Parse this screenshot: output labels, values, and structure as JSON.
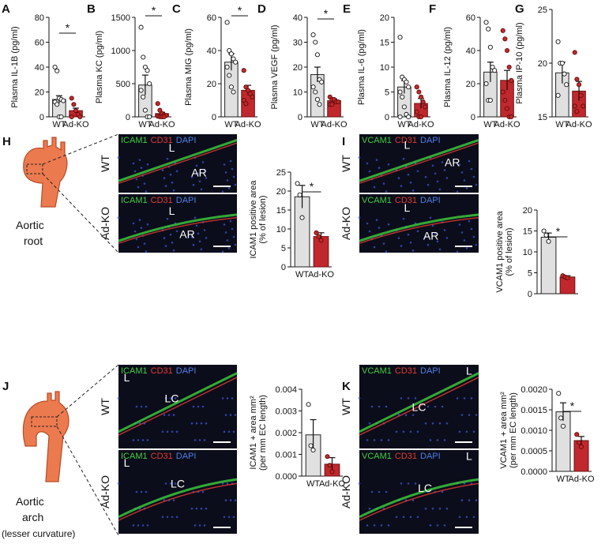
{
  "chart_data": [
    {
      "type": "bar",
      "panel": "A",
      "ylabel": [
        "Plasma IL-1B (pg/ml)"
      ],
      "categories": [
        "WT",
        "Ad-KO"
      ],
      "values": [
        14,
        5
      ],
      "errors": [
        3,
        2
      ],
      "points": [
        [
          40,
          37,
          15,
          14,
          13,
          12,
          10,
          0,
          0
        ],
        [
          15,
          10,
          5,
          2,
          0,
          0
        ]
      ],
      "ylim": [
        0,
        80
      ],
      "yticks": [
        0,
        20,
        40,
        60,
        80
      ],
      "annotation": "*",
      "colors": [
        "#e0e0e0",
        "#c0282d"
      ]
    },
    {
      "type": "bar",
      "panel": "B",
      "ylabel": [
        "Plasma KC (pg/ml)"
      ],
      "categories": [
        "WT",
        "Ad-KO"
      ],
      "values": [
        480,
        50
      ],
      "errors": [
        150,
        20
      ],
      "points": [
        [
          1350,
          900,
          750,
          700,
          500,
          400,
          300,
          100,
          0,
          0
        ],
        [
          200,
          100,
          50,
          30,
          20,
          10,
          0,
          0,
          0
        ]
      ],
      "ylim": [
        0,
        1500
      ],
      "yticks": [
        0,
        500,
        1000,
        1500
      ],
      "annotation": "*",
      "colors": [
        "#e0e0e0",
        "#c0282d"
      ]
    },
    {
      "type": "bar",
      "panel": "C",
      "ylabel": [
        "Plasma MIG (pg/ml)"
      ],
      "categories": [
        "WT",
        "Ad-KO"
      ],
      "values": [
        33,
        16
      ],
      "errors": [
        5,
        3
      ],
      "points": [
        [
          57,
          40,
          38,
          35,
          33,
          30,
          25,
          18,
          15
        ],
        [
          28,
          18,
          16,
          14,
          12,
          10,
          8
        ]
      ],
      "ylim": [
        0,
        60
      ],
      "yticks": [
        0,
        20,
        40,
        60
      ],
      "annotation": "*",
      "colors": [
        "#e0e0e0",
        "#c0282d"
      ]
    },
    {
      "type": "bar",
      "panel": "D",
      "ylabel": [
        "Plasma VEGF (pg/ml)"
      ],
      "categories": [
        "WT",
        "Ad-KO"
      ],
      "values": [
        17,
        6.5
      ],
      "errors": [
        3,
        0.7
      ],
      "points": [
        [
          33,
          30,
          25,
          15,
          14,
          12,
          10,
          7,
          5
        ],
        [
          8,
          7,
          7,
          6,
          6,
          5,
          5
        ]
      ],
      "ylim": [
        0,
        40
      ],
      "yticks": [
        0,
        10,
        20,
        30,
        40
      ],
      "annotation": "*",
      "colors": [
        "#e0e0e0",
        "#c0282d"
      ]
    },
    {
      "type": "bar",
      "panel": "E",
      "ylabel": [
        "Plasma IL-6 (pg/ml)"
      ],
      "categories": [
        "WT",
        "Ad-KO"
      ],
      "values": [
        6,
        2.7
      ],
      "errors": [
        1.3,
        1
      ],
      "points": [
        [
          16,
          8,
          7.5,
          7,
          6,
          5,
          4,
          2,
          0.5,
          0,
          0
        ],
        [
          6,
          5,
          4,
          3,
          2,
          1,
          0,
          0
        ]
      ],
      "ylim": [
        0,
        20
      ],
      "yticks": [
        0,
        5,
        10,
        15,
        20
      ],
      "colors": [
        "#e0e0e0",
        "#c0282d"
      ]
    },
    {
      "type": "bar",
      "panel": "F",
      "ylabel": [
        "Plasma IL-12 (pg/ml)"
      ],
      "categories": [
        "WT",
        "Ad-KO"
      ],
      "values": [
        27,
        22
      ],
      "errors": [
        6,
        6
      ],
      "points": [
        [
          57,
          53,
          42,
          30,
          28,
          20,
          10,
          10
        ],
        [
          52,
          47,
          40,
          30,
          22,
          15,
          10,
          5,
          0,
          0
        ]
      ],
      "ylim": [
        0,
        60
      ],
      "yticks": [
        0,
        20,
        40,
        60
      ],
      "colors": [
        "#e0e0e0",
        "#c0282d"
      ]
    },
    {
      "type": "bar",
      "panel": "G",
      "ylabel": [
        "Plasma IP-10 (pg/ml)"
      ],
      "categories": [
        "WT",
        "Ad-KO"
      ],
      "values": [
        19.1,
        17.4
      ],
      "errors": [
        1,
        0.9
      ],
      "points": [
        [
          22,
          20,
          20,
          19,
          18,
          17
        ],
        [
          21,
          18.5,
          18,
          17,
          16,
          16,
          15.5
        ]
      ],
      "ylim": [
        15,
        25
      ],
      "yticks": [
        15,
        20,
        25
      ],
      "colors": [
        "#e0e0e0",
        "#c0282d"
      ]
    },
    {
      "type": "bar",
      "ylabel": [
        "ICAM1 positive area",
        "(% of lesion)"
      ],
      "categories": [
        "WT",
        "Ad-KO"
      ],
      "values": [
        18.5,
        8
      ],
      "errors": [
        3,
        1
      ],
      "points": [
        [
          22,
          19,
          13
        ],
        [
          9,
          8,
          7
        ]
      ],
      "ylim": [
        0,
        25
      ],
      "yticks": [
        0,
        5,
        10,
        15,
        20,
        25
      ],
      "annotation": "*",
      "colors": [
        "#e0e0e0",
        "#c0282d"
      ]
    },
    {
      "type": "bar",
      "ylabel": [
        "VCAM1 positive area",
        "(% of lesion)"
      ],
      "values": [
        13.5,
        4
      ],
      "errors": [
        1,
        0.3
      ],
      "points": [
        [
          15,
          14,
          12.5
        ],
        [
          4.3,
          4,
          3.8
        ]
      ],
      "ylim": [
        0,
        20
      ],
      "yticks": [
        0,
        5,
        10,
        15,
        20
      ],
      "annotation": "*",
      "colors": [
        "#e0e0e0",
        "#c0282d"
      ]
    },
    {
      "type": "bar",
      "ylabel": [
        "ICAM1 + area mm²",
        "(per mm EC length)"
      ],
      "categories": [
        "WT",
        "Ad-KO"
      ],
      "values": [
        0.0019,
        0.00055
      ],
      "errors": [
        0.0007,
        0.0003
      ],
      "points": [
        [
          0.0033,
          0.0014,
          0.0012
        ],
        [
          0.0009,
          0.0005,
          0.0002
        ]
      ],
      "ylim": [
        0,
        0.004
      ],
      "yticks": [
        {
          "value": 0,
          "label": "0.000"
        },
        {
          "value": 0.001,
          "label": "0.001"
        },
        {
          "value": 0.002,
          "label": "0.002"
        },
        {
          "value": 0.003,
          "label": "0.003"
        },
        {
          "value": 0.004,
          "label": "0.004"
        }
      ],
      "colors": [
        "#e0e0e0",
        "#c0282d"
      ]
    },
    {
      "type": "bar",
      "ylabel": [
        "VCAM1 + area mm²",
        "(per mm EC length)"
      ],
      "categories": [
        "WT",
        "Ad-KO"
      ],
      "values": [
        0.00145,
        0.00075
      ],
      "errors": [
        0.00022,
        0.0001
      ],
      "points": [
        [
          0.0019,
          0.0013,
          0.0011
        ],
        [
          0.0009,
          0.0007,
          0.0006
        ]
      ],
      "ylim": [
        0,
        0.002
      ],
      "yticks": [
        {
          "value": 0,
          "label": "0.0000"
        },
        {
          "value": 0.0005,
          "label": "0.0005"
        },
        {
          "value": 0.001,
          "label": "0.0010"
        },
        {
          "value": 0.0015,
          "label": "0.0015"
        },
        {
          "value": 0.002,
          "label": "0.0020"
        }
      ],
      "annotation": "*",
      "colors": [
        "#e0e0e0",
        "#c0282d"
      ]
    }
  ],
  "micrographs": [
    {
      "panel": "H",
      "stain": [
        {
          "text": "ICAM1",
          "color": "#3fd13f"
        },
        {
          "text": "CD31",
          "color": "#e53935"
        },
        {
          "text": "DAPI",
          "color": "#4f7fe8"
        }
      ],
      "rows": [
        {
          "genotype": "WT",
          "labels": [
            "L",
            "AR"
          ]
        },
        {
          "genotype": "Ad-KO",
          "labels": [
            "L",
            "AR"
          ]
        }
      ]
    },
    {
      "panel": "I",
      "stain": [
        {
          "text": "VCAM1",
          "color": "#3fd13f"
        },
        {
          "text": "CD31",
          "color": "#e53935"
        },
        {
          "text": "DAPI",
          "color": "#4f7fe8"
        }
      ],
      "rows": [
        {
          "genotype": "WT",
          "labels": [
            "L",
            "AR"
          ]
        },
        {
          "genotype": "Ad-KO",
          "labels": [
            "L",
            "AR"
          ]
        }
      ]
    },
    {
      "panel": "J",
      "stain": [
        {
          "text": "ICAM1",
          "color": "#3fd13f"
        },
        {
          "text": "CD31",
          "color": "#e53935"
        },
        {
          "text": "DAPI",
          "color": "#4f7fe8"
        }
      ],
      "rows": [
        {
          "genotype": "WT",
          "labels": [
            "L",
            "LC"
          ]
        },
        {
          "genotype": "Ad-KO",
          "labels": [
            "L",
            "LC"
          ]
        }
      ]
    },
    {
      "panel": "K",
      "stain": [
        {
          "text": "VCAM1",
          "color": "#3fd13f"
        },
        {
          "text": "CD31",
          "color": "#e53935"
        },
        {
          "text": "DAPI",
          "color": "#4f7fe8"
        }
      ],
      "rows": [
        {
          "genotype": "WT",
          "labels": [
            "L",
            "LC"
          ]
        },
        {
          "genotype": "Ad-KO",
          "labels": [
            "L",
            "LC"
          ]
        }
      ]
    }
  ],
  "diagrams": [
    {
      "lines": [
        "Aortic",
        "root"
      ]
    },
    {
      "lines": [
        "Aortic",
        "arch",
        "(lesser curvature)"
      ]
    }
  ]
}
